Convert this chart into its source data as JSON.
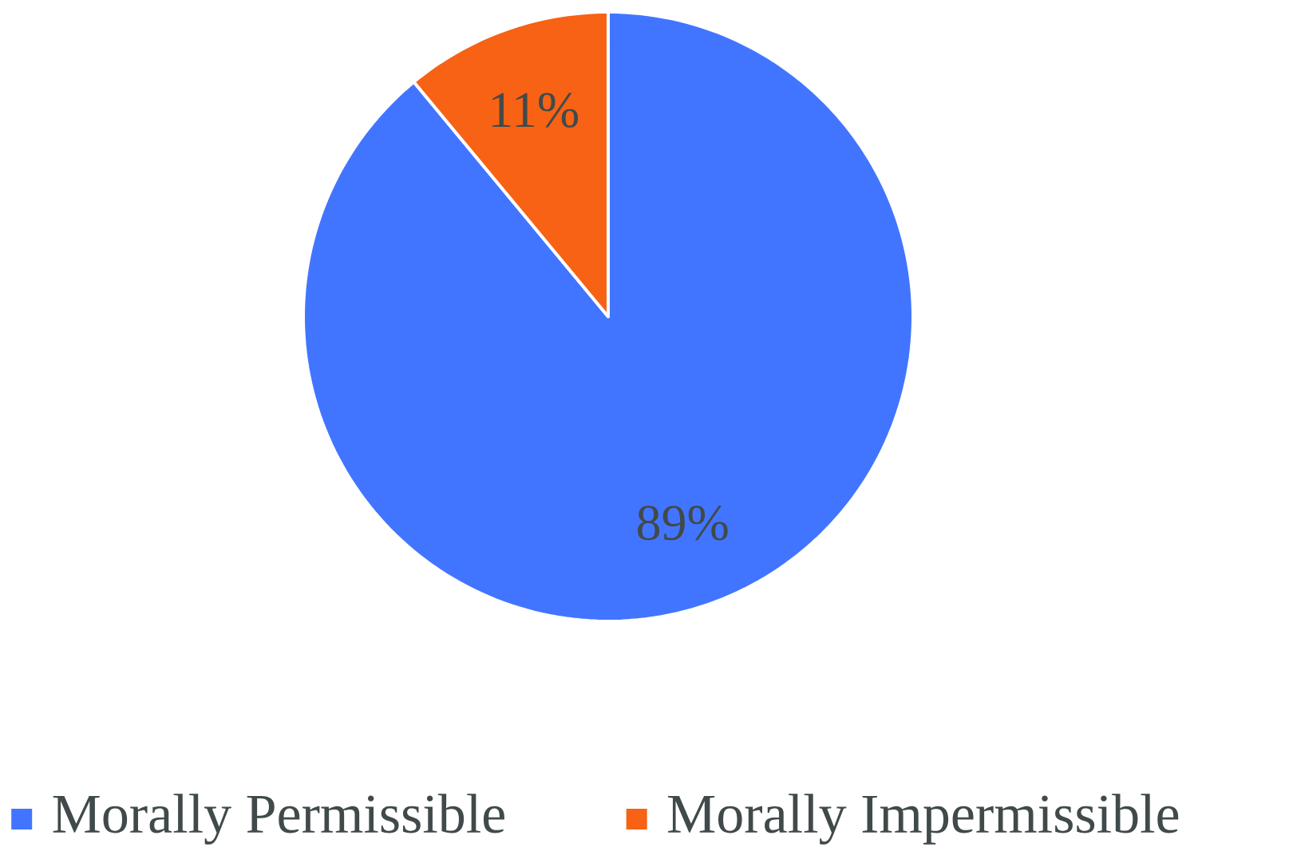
{
  "chart_data": {
    "type": "pie",
    "categories": [
      "Morally Permissible",
      "Morally Impermissible"
    ],
    "values": [
      89,
      11
    ],
    "colors": [
      "#4275ff",
      "#f76214"
    ],
    "value_labels": [
      "89%",
      "11%"
    ],
    "legend": "bottom"
  }
}
